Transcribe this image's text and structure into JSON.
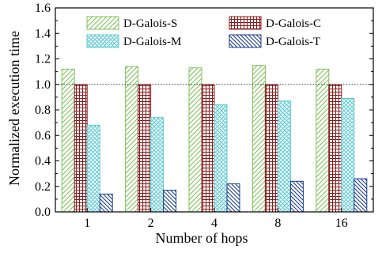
{
  "chart_data": {
    "type": "bar",
    "title": "",
    "xlabel": "Number of hops",
    "ylabel": "Normalized execution time",
    "ylim": [
      0,
      1.6
    ],
    "yticks": [
      "0.0",
      "0.2",
      "0.4",
      "0.6",
      "0.8",
      "1.0",
      "1.2",
      "1.4",
      "1.6"
    ],
    "reference_line": 1.0,
    "grid": false,
    "legend_position": "top",
    "categories": [
      "1",
      "2",
      "4",
      "8",
      "16"
    ],
    "series": [
      {
        "name": "D-Galois-S",
        "color": "#7dc35a",
        "pattern": "diagonal",
        "values": [
          1.12,
          1.14,
          1.13,
          1.15,
          1.12
        ]
      },
      {
        "name": "D-Galois-C",
        "color": "#8b1a1a",
        "pattern": "grid",
        "values": [
          1.0,
          1.0,
          1.0,
          1.0,
          1.0
        ]
      },
      {
        "name": "D-Galois-M",
        "color": "#5ccbd3",
        "pattern": "crosshatch",
        "values": [
          0.68,
          0.74,
          0.84,
          0.87,
          0.89
        ]
      },
      {
        "name": "D-Galois-T",
        "color": "#1a3a8a",
        "pattern": "backdiagonal",
        "values": [
          0.14,
          0.17,
          0.22,
          0.24,
          0.26
        ]
      }
    ]
  }
}
